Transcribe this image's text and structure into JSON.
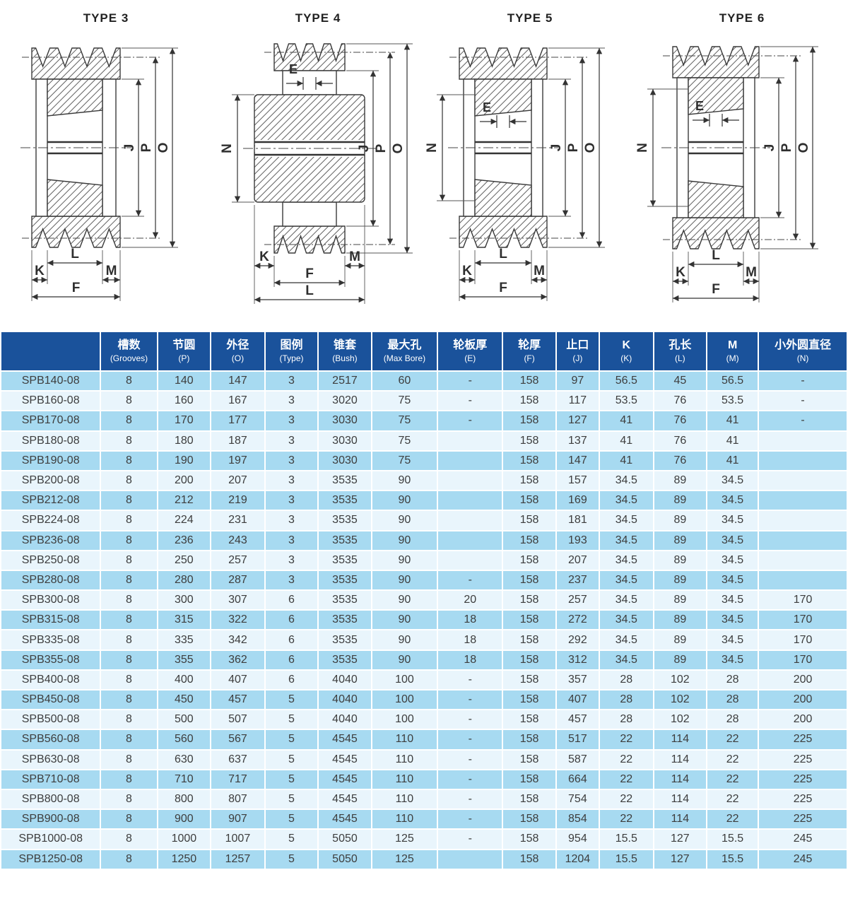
{
  "colors": {
    "header_bg": "#1a529b",
    "header_text": "#ffffff",
    "row_odd": "#a7daf1",
    "row_even": "#e9f5fc",
    "grid": "#ffffff",
    "body_text": "#3d3d3d",
    "line": "#3a3a3a"
  },
  "drawings": {
    "items": [
      {
        "title": "TYPE 3",
        "labels": {
          "J": "J",
          "P": "P",
          "O": "O",
          "K": "K",
          "L": "L",
          "M": "M",
          "F": "F"
        }
      },
      {
        "title": "TYPE 4",
        "labels": {
          "E": "E",
          "N": "N",
          "J": "J",
          "P": "P",
          "O": "O",
          "K": "K",
          "L": "L",
          "M": "M",
          "F": "F"
        }
      },
      {
        "title": "TYPE 5",
        "labels": {
          "E": "E",
          "N": "N",
          "J": "J",
          "P": "P",
          "O": "O",
          "K": "K",
          "L": "L",
          "M": "M",
          "F": "F"
        }
      },
      {
        "title": "TYPE 6",
        "labels": {
          "E": "E",
          "N": "N",
          "J": "J",
          "P": "P",
          "O": "O",
          "K": "K",
          "L": "L",
          "M": "M",
          "F": "F"
        }
      }
    ]
  },
  "table": {
    "columns": [
      {
        "id": "model",
        "cn": "",
        "en": ""
      },
      {
        "id": "grooves",
        "cn": "槽数",
        "en": "(Grooves)"
      },
      {
        "id": "pitch-p",
        "cn": "节圆",
        "en": "(P)"
      },
      {
        "id": "od-o",
        "cn": "外径",
        "en": "(O)"
      },
      {
        "id": "type",
        "cn": "图例",
        "en": "(Type)"
      },
      {
        "id": "bush",
        "cn": "锥套",
        "en": "(Bush)"
      },
      {
        "id": "maxbore",
        "cn": "最大孔",
        "en": "(Max Bore)"
      },
      {
        "id": "e",
        "cn": "轮板厚",
        "en": "(E)"
      },
      {
        "id": "f",
        "cn": "轮厚",
        "en": "(F)"
      },
      {
        "id": "j",
        "cn": "止口",
        "en": "(J)"
      },
      {
        "id": "k",
        "cn": "K",
        "en": "(K)"
      },
      {
        "id": "l",
        "cn": "孔长",
        "en": "(L)"
      },
      {
        "id": "m",
        "cn": "M",
        "en": "(M)"
      },
      {
        "id": "n",
        "cn": "小外圆直径",
        "en": "(N)"
      }
    ],
    "rows": [
      [
        "SPB140-08",
        "8",
        "140",
        "147",
        "3",
        "2517",
        "60",
        "-",
        "158",
        "97",
        "56.5",
        "45",
        "56.5",
        "-"
      ],
      [
        "SPB160-08",
        "8",
        "160",
        "167",
        "3",
        "3020",
        "75",
        "-",
        "158",
        "117",
        "53.5",
        "76",
        "53.5",
        "-"
      ],
      [
        "SPB170-08",
        "8",
        "170",
        "177",
        "3",
        "3030",
        "75",
        "-",
        "158",
        "127",
        "41",
        "76",
        "41",
        "-"
      ],
      [
        "SPB180-08",
        "8",
        "180",
        "187",
        "3",
        "3030",
        "75",
        "",
        "158",
        "137",
        "41",
        "76",
        "41",
        ""
      ],
      [
        "SPB190-08",
        "8",
        "190",
        "197",
        "3",
        "3030",
        "75",
        "",
        "158",
        "147",
        "41",
        "76",
        "41",
        ""
      ],
      [
        "SPB200-08",
        "8",
        "200",
        "207",
        "3",
        "3535",
        "90",
        "",
        "158",
        "157",
        "34.5",
        "89",
        "34.5",
        ""
      ],
      [
        "SPB212-08",
        "8",
        "212",
        "219",
        "3",
        "3535",
        "90",
        "",
        "158",
        "169",
        "34.5",
        "89",
        "34.5",
        ""
      ],
      [
        "SPB224-08",
        "8",
        "224",
        "231",
        "3",
        "3535",
        "90",
        "",
        "158",
        "181",
        "34.5",
        "89",
        "34.5",
        ""
      ],
      [
        "SPB236-08",
        "8",
        "236",
        "243",
        "3",
        "3535",
        "90",
        "",
        "158",
        "193",
        "34.5",
        "89",
        "34.5",
        ""
      ],
      [
        "SPB250-08",
        "8",
        "250",
        "257",
        "3",
        "3535",
        "90",
        "",
        "158",
        "207",
        "34.5",
        "89",
        "34.5",
        ""
      ],
      [
        "SPB280-08",
        "8",
        "280",
        "287",
        "3",
        "3535",
        "90",
        "-",
        "158",
        "237",
        "34.5",
        "89",
        "34.5",
        ""
      ],
      [
        "SPB300-08",
        "8",
        "300",
        "307",
        "6",
        "3535",
        "90",
        "20",
        "158",
        "257",
        "34.5",
        "89",
        "34.5",
        "170"
      ],
      [
        "SPB315-08",
        "8",
        "315",
        "322",
        "6",
        "3535",
        "90",
        "18",
        "158",
        "272",
        "34.5",
        "89",
        "34.5",
        "170"
      ],
      [
        "SPB335-08",
        "8",
        "335",
        "342",
        "6",
        "3535",
        "90",
        "18",
        "158",
        "292",
        "34.5",
        "89",
        "34.5",
        "170"
      ],
      [
        "SPB355-08",
        "8",
        "355",
        "362",
        "6",
        "3535",
        "90",
        "18",
        "158",
        "312",
        "34.5",
        "89",
        "34.5",
        "170"
      ],
      [
        "SPB400-08",
        "8",
        "400",
        "407",
        "6",
        "4040",
        "100",
        "-",
        "158",
        "357",
        "28",
        "102",
        "28",
        "200"
      ],
      [
        "SPB450-08",
        "8",
        "450",
        "457",
        "5",
        "4040",
        "100",
        "-",
        "158",
        "407",
        "28",
        "102",
        "28",
        "200"
      ],
      [
        "SPB500-08",
        "8",
        "500",
        "507",
        "5",
        "4040",
        "100",
        "-",
        "158",
        "457",
        "28",
        "102",
        "28",
        "200"
      ],
      [
        "SPB560-08",
        "8",
        "560",
        "567",
        "5",
        "4545",
        "110",
        "-",
        "158",
        "517",
        "22",
        "114",
        "22",
        "225"
      ],
      [
        "SPB630-08",
        "8",
        "630",
        "637",
        "5",
        "4545",
        "110",
        "-",
        "158",
        "587",
        "22",
        "114",
        "22",
        "225"
      ],
      [
        "SPB710-08",
        "8",
        "710",
        "717",
        "5",
        "4545",
        "110",
        "-",
        "158",
        "664",
        "22",
        "114",
        "22",
        "225"
      ],
      [
        "SPB800-08",
        "8",
        "800",
        "807",
        "5",
        "4545",
        "110",
        "-",
        "158",
        "754",
        "22",
        "114",
        "22",
        "225"
      ],
      [
        "SPB900-08",
        "8",
        "900",
        "907",
        "5",
        "4545",
        "110",
        "-",
        "158",
        "854",
        "22",
        "114",
        "22",
        "225"
      ],
      [
        "SPB1000-08",
        "8",
        "1000",
        "1007",
        "5",
        "5050",
        "125",
        "-",
        "158",
        "954",
        "15.5",
        "127",
        "15.5",
        "245"
      ],
      [
        "SPB1250-08",
        "8",
        "1250",
        "1257",
        "5",
        "5050",
        "125",
        "",
        "158",
        "1204",
        "15.5",
        "127",
        "15.5",
        "245"
      ]
    ]
  }
}
